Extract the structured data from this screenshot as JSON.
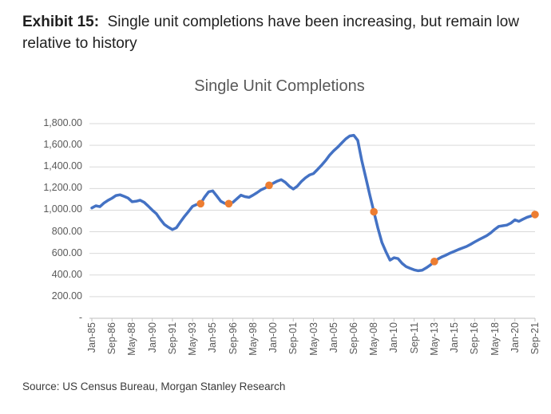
{
  "header": {
    "exhibit_label": "Exhibit 15:",
    "title_rest": "  Single unit completions have been increasing, but remain low relative to history"
  },
  "source_note": "Source: US Census Bureau, Morgan Stanley Research",
  "colors": {
    "line": "#4472C4",
    "marker": "#ED7D31",
    "grid": "#D9D9D9",
    "axis": "#BFBFBF",
    "muted_text": "#595959"
  },
  "chart_data": {
    "type": "line",
    "title": "Single Unit Completions",
    "xlabel": "",
    "ylabel": "",
    "ylim": [
      0,
      1900
    ],
    "grid": true,
    "legend": false,
    "x_tick_labels": [
      "Jan-85",
      "Sep-86",
      "May-88",
      "Jan-90",
      "Sep-91",
      "May-93",
      "Jan-95",
      "Sep-96",
      "May-98",
      "Jan-00",
      "Sep-01",
      "May-03",
      "Jan-05",
      "Sep-06",
      "May-08",
      "Jan-10",
      "Sep-11",
      "May-13",
      "Jan-15",
      "Sep-16",
      "May-18",
      "Jan-20",
      "Sep-21"
    ],
    "y_ticks": [
      {
        "value": 0,
        "label": "-"
      },
      {
        "value": 200,
        "label": "200.00"
      },
      {
        "value": 400,
        "label": "400.00"
      },
      {
        "value": 600,
        "label": "600.00"
      },
      {
        "value": 800,
        "label": "800.00"
      },
      {
        "value": 1000,
        "label": "1,000.00"
      },
      {
        "value": 1200,
        "label": "1,200.00"
      },
      {
        "value": 1400,
        "label": "1,400.00"
      },
      {
        "value": 1600,
        "label": "1,600.00"
      },
      {
        "value": 1800,
        "label": "1,800.00"
      }
    ],
    "x": [
      "Jan-85",
      "May-85",
      "Sep-85",
      "Jan-86",
      "May-86",
      "Sep-86",
      "Jan-87",
      "May-87",
      "Sep-87",
      "Jan-88",
      "May-88",
      "Sep-88",
      "Jan-89",
      "May-89",
      "Sep-89",
      "Jan-90",
      "May-90",
      "Sep-90",
      "Jan-91",
      "May-91",
      "Sep-91",
      "Jan-92",
      "May-92",
      "Sep-92",
      "Jan-93",
      "May-93",
      "Sep-93",
      "Jan-94",
      "May-94",
      "Sep-94",
      "Jan-95",
      "May-95",
      "Sep-95",
      "Jan-96",
      "May-96",
      "Sep-96",
      "Jan-97",
      "May-97",
      "Sep-97",
      "Jan-98",
      "May-98",
      "Sep-98",
      "Jan-99",
      "May-99",
      "Sep-99",
      "Jan-00",
      "May-00",
      "Sep-00",
      "Jan-01",
      "May-01",
      "Sep-01",
      "Jan-02",
      "May-02",
      "Sep-02",
      "Jan-03",
      "May-03",
      "Sep-03",
      "Jan-04",
      "May-04",
      "Sep-04",
      "Jan-05",
      "May-05",
      "Sep-05",
      "Jan-06",
      "May-06",
      "Sep-06",
      "Jan-07",
      "May-07",
      "Sep-07",
      "Jan-08",
      "May-08",
      "Sep-08",
      "Jan-09",
      "May-09",
      "Sep-09",
      "Jan-10",
      "May-10",
      "Sep-10",
      "Jan-11",
      "May-11",
      "Sep-11",
      "Jan-12",
      "May-12",
      "Sep-12",
      "Jan-13",
      "May-13",
      "Sep-13",
      "Jan-14",
      "May-14",
      "Sep-14",
      "Jan-15",
      "May-15",
      "Sep-15",
      "Jan-16",
      "May-16",
      "Sep-16",
      "Jan-17",
      "May-17",
      "Sep-17",
      "Jan-18",
      "May-18",
      "Sep-18",
      "Jan-19",
      "May-19",
      "Sep-19",
      "Jan-20",
      "May-20",
      "Sep-20",
      "Jan-21",
      "May-21",
      "Sep-21"
    ],
    "series": [
      {
        "name": "Single Unit Completions",
        "values": [
          1020,
          1040,
          1032,
          1065,
          1090,
          1110,
          1135,
          1142,
          1128,
          1112,
          1078,
          1082,
          1092,
          1072,
          1038,
          1000,
          968,
          915,
          868,
          842,
          820,
          838,
          892,
          942,
          988,
          1035,
          1052,
          1060,
          1122,
          1170,
          1178,
          1132,
          1082,
          1062,
          1060,
          1072,
          1105,
          1138,
          1125,
          1118,
          1138,
          1162,
          1188,
          1205,
          1230,
          1248,
          1268,
          1282,
          1258,
          1222,
          1195,
          1222,
          1265,
          1298,
          1325,
          1338,
          1375,
          1415,
          1458,
          1508,
          1548,
          1582,
          1620,
          1658,
          1686,
          1692,
          1645,
          1460,
          1300,
          1140,
          985,
          835,
          700,
          615,
          538,
          560,
          552,
          508,
          478,
          462,
          448,
          440,
          444,
          466,
          492,
          525,
          550,
          570,
          586,
          604,
          620,
          636,
          650,
          664,
          684,
          705,
          726,
          744,
          764,
          790,
          822,
          850,
          856,
          862,
          880,
          910,
          896,
          916,
          934,
          946,
          960
        ]
      }
    ],
    "markers": [
      {
        "x": "Jan-94",
        "value": 1060
      },
      {
        "x": "May-96",
        "value": 1060
      },
      {
        "x": "Sep-99",
        "value": 1230
      },
      {
        "x": "May-08",
        "value": 985
      },
      {
        "x": "May-13",
        "value": 525
      },
      {
        "x": "Sep-21",
        "value": 960
      }
    ]
  }
}
